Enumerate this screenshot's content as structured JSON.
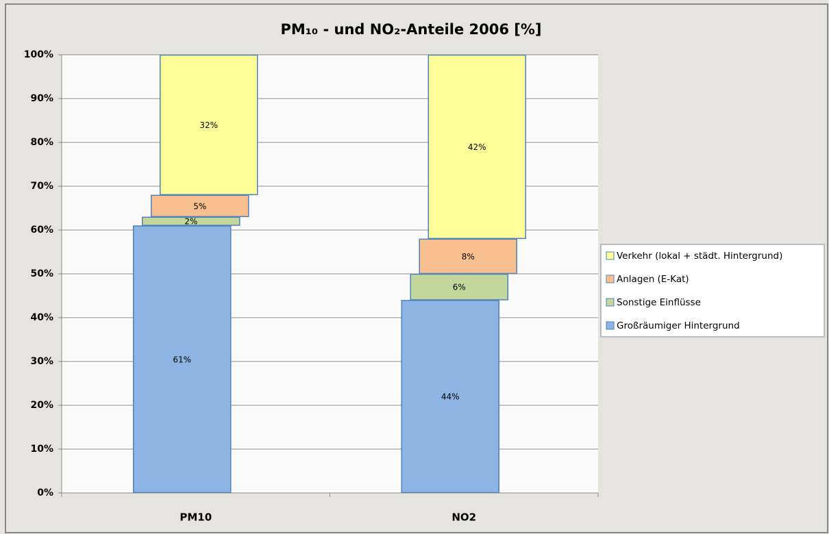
{
  "chart_data": {
    "type": "stacked_bar",
    "title": "PM₁₀ - und NO₂-Anteile 2006 [%]",
    "categories": [
      "PM10",
      "NO2"
    ],
    "series": [
      {
        "name": "Großräumiger Hintergrund",
        "color": "#8eb4e3",
        "values": [
          61,
          44
        ],
        "value_labels": [
          "61%",
          "44%"
        ]
      },
      {
        "name": "Sonstige Einflüsse",
        "color": "#c3d69b",
        "values": [
          2,
          6
        ],
        "value_labels": [
          "2%",
          "6%"
        ]
      },
      {
        "name": "Anlagen (E-Kat)",
        "color": "#fabf8f",
        "values": [
          5,
          8
        ],
        "value_labels": [
          "5%",
          "8%"
        ]
      },
      {
        "name": "Verkehr (lokal + städt. Hintergrund)",
        "color": "#ffff99",
        "values": [
          32,
          42
        ],
        "value_labels": [
          "32%",
          "42%"
        ]
      }
    ],
    "ylim": [
      0,
      100
    ],
    "yticks": [
      {
        "value": 0,
        "label": "0%"
      },
      {
        "value": 10,
        "label": "10%"
      },
      {
        "value": 20,
        "label": "20%"
      },
      {
        "value": 30,
        "label": "30%"
      },
      {
        "value": 40,
        "label": "40%"
      },
      {
        "value": 50,
        "label": "50%"
      },
      {
        "value": 60,
        "label": "60%"
      },
      {
        "value": 70,
        "label": "70%"
      },
      {
        "value": 80,
        "label": "80%"
      },
      {
        "value": 90,
        "label": "90%"
      },
      {
        "value": 100,
        "label": "100%"
      }
    ],
    "grid": true,
    "legend": "right"
  }
}
